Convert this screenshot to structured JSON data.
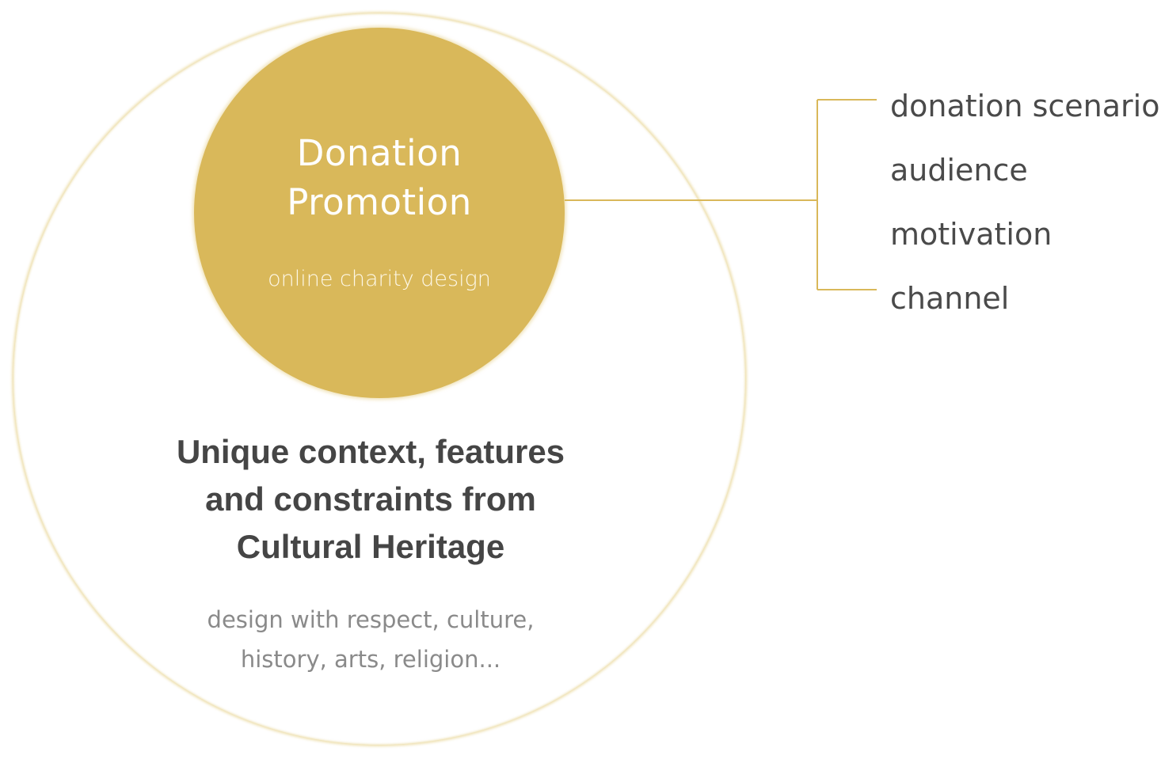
{
  "diagram": {
    "inner": {
      "title_line1": "Donation",
      "title_line2": "Promotion",
      "subtitle": "online charity design"
    },
    "outer": {
      "title_line1": "Unique context, features",
      "title_line2": "and constraints from",
      "title_line3": "Cultural Heritage",
      "subtitle_line1": "design with respect, culture,",
      "subtitle_line2": "history, arts, religion..."
    },
    "aspects": [
      "donation scenario",
      "audience",
      "motivation",
      "channel"
    ]
  },
  "colors": {
    "gold": "#d9b85a",
    "outer_glow": "#ebd9a0",
    "connector": "#d9b85a",
    "outer_title": "#454545",
    "outer_subtitle": "#8a8a8a",
    "aspect_text": "#4a4a4a"
  }
}
